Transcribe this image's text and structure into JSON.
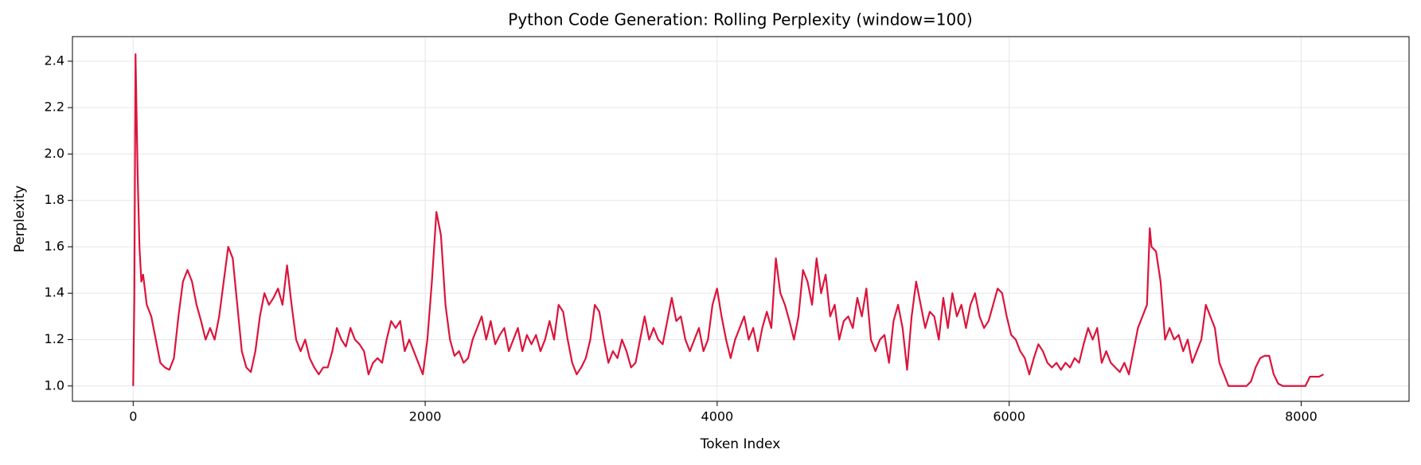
{
  "chart_data": {
    "type": "line",
    "title": "Python Code Generation: Rolling Perplexity (window=100)",
    "x_label": "Token Index",
    "y_label": "Perplexity",
    "color": "#dc143c",
    "grid": true,
    "xlim": [
      -416,
      8739
    ],
    "ylim": [
      0.934,
      2.506
    ],
    "xticks": [
      0,
      2000,
      4000,
      6000,
      8000
    ],
    "yticks": [
      {
        "value": 1,
        "label": "1.0"
      },
      1.2,
      1.4,
      1.6,
      1.8,
      {
        "value": 2,
        "label": "2.0"
      },
      2.2,
      2.4
    ],
    "x": [
      0,
      8,
      16,
      31,
      43,
      56,
      68,
      93,
      124,
      155,
      186,
      217,
      248,
      279,
      310,
      341,
      372,
      403,
      434,
      465,
      496,
      527,
      558,
      589,
      620,
      651,
      682,
      713,
      744,
      775,
      806,
      837,
      868,
      899,
      930,
      961,
      992,
      1023,
      1054,
      1085,
      1116,
      1147,
      1178,
      1209,
      1240,
      1271,
      1302,
      1333,
      1364,
      1395,
      1426,
      1457,
      1488,
      1519,
      1550,
      1581,
      1612,
      1643,
      1674,
      1705,
      1736,
      1767,
      1798,
      1829,
      1860,
      1891,
      1922,
      1953,
      1984,
      2015,
      2046,
      2077,
      2108,
      2139,
      2170,
      2201,
      2232,
      2263,
      2294,
      2325,
      2356,
      2387,
      2418,
      2449,
      2480,
      2511,
      2542,
      2573,
      2604,
      2635,
      2666,
      2697,
      2728,
      2759,
      2790,
      2821,
      2852,
      2883,
      2914,
      2945,
      2976,
      3007,
      3038,
      3069,
      3100,
      3131,
      3162,
      3193,
      3224,
      3255,
      3286,
      3317,
      3348,
      3379,
      3410,
      3441,
      3472,
      3503,
      3534,
      3565,
      3596,
      3627,
      3658,
      3689,
      3720,
      3751,
      3782,
      3813,
      3844,
      3875,
      3906,
      3937,
      3968,
      3999,
      4030,
      4061,
      4092,
      4123,
      4154,
      4185,
      4216,
      4247,
      4278,
      4309,
      4340,
      4371,
      4402,
      4433,
      4464,
      4495,
      4526,
      4557,
      4588,
      4619,
      4650,
      4681,
      4712,
      4743,
      4774,
      4805,
      4836,
      4867,
      4898,
      4929,
      4960,
      4991,
      5022,
      5053,
      5084,
      5115,
      5146,
      5177,
      5208,
      5239,
      5270,
      5301,
      5332,
      5363,
      5394,
      5425,
      5456,
      5487,
      5518,
      5549,
      5580,
      5611,
      5642,
      5673,
      5704,
      5735,
      5766,
      5797,
      5828,
      5859,
      5890,
      5921,
      5952,
      5983,
      6014,
      6045,
      6076,
      6107,
      6138,
      6169,
      6200,
      6231,
      6262,
      6293,
      6324,
      6355,
      6386,
      6417,
      6448,
      6479,
      6510,
      6541,
      6572,
      6603,
      6634,
      6665,
      6696,
      6727,
      6758,
      6789,
      6820,
      6851,
      6882,
      6913,
      6944,
      6963,
      6975,
      7006,
      7037,
      7068,
      7099,
      7130,
      7161,
      7192,
      7223,
      7254,
      7285,
      7316,
      7347,
      7378,
      7409,
      7440,
      7471,
      7502,
      7533,
      7564,
      7595,
      7626,
      7657,
      7688,
      7719,
      7750,
      7781,
      7812,
      7843,
      7874,
      7905,
      7936,
      7967,
      7998,
      8029,
      8060,
      8091,
      8122,
      8153
    ],
    "values": [
      1.0,
      1.38,
      2.43,
      1.9,
      1.6,
      1.45,
      1.48,
      1.35,
      1.3,
      1.2,
      1.1,
      1.08,
      1.07,
      1.12,
      1.3,
      1.45,
      1.5,
      1.45,
      1.35,
      1.28,
      1.2,
      1.25,
      1.2,
      1.3,
      1.45,
      1.6,
      1.55,
      1.35,
      1.15,
      1.08,
      1.06,
      1.15,
      1.3,
      1.4,
      1.35,
      1.38,
      1.42,
      1.35,
      1.52,
      1.35,
      1.2,
      1.15,
      1.2,
      1.12,
      1.08,
      1.05,
      1.08,
      1.08,
      1.15,
      1.25,
      1.2,
      1.17,
      1.25,
      1.2,
      1.18,
      1.15,
      1.05,
      1.1,
      1.12,
      1.1,
      1.2,
      1.28,
      1.25,
      1.28,
      1.15,
      1.2,
      1.15,
      1.1,
      1.05,
      1.2,
      1.45,
      1.75,
      1.65,
      1.35,
      1.2,
      1.13,
      1.15,
      1.1,
      1.12,
      1.2,
      1.25,
      1.3,
      1.2,
      1.28,
      1.18,
      1.22,
      1.25,
      1.15,
      1.2,
      1.25,
      1.15,
      1.22,
      1.18,
      1.22,
      1.15,
      1.2,
      1.28,
      1.2,
      1.35,
      1.32,
      1.2,
      1.1,
      1.05,
      1.08,
      1.12,
      1.2,
      1.35,
      1.32,
      1.2,
      1.1,
      1.15,
      1.12,
      1.2,
      1.15,
      1.08,
      1.1,
      1.2,
      1.3,
      1.2,
      1.25,
      1.2,
      1.18,
      1.28,
      1.38,
      1.28,
      1.3,
      1.2,
      1.15,
      1.2,
      1.25,
      1.15,
      1.2,
      1.35,
      1.42,
      1.3,
      1.2,
      1.12,
      1.2,
      1.25,
      1.3,
      1.2,
      1.25,
      1.15,
      1.25,
      1.32,
      1.25,
      1.55,
      1.4,
      1.35,
      1.28,
      1.2,
      1.3,
      1.5,
      1.45,
      1.35,
      1.55,
      1.4,
      1.48,
      1.3,
      1.35,
      1.2,
      1.28,
      1.3,
      1.25,
      1.38,
      1.3,
      1.42,
      1.2,
      1.15,
      1.2,
      1.22,
      1.1,
      1.28,
      1.35,
      1.25,
      1.07,
      1.3,
      1.45,
      1.35,
      1.25,
      1.32,
      1.3,
      1.2,
      1.38,
      1.25,
      1.4,
      1.3,
      1.35,
      1.25,
      1.35,
      1.4,
      1.3,
      1.25,
      1.28,
      1.35,
      1.42,
      1.4,
      1.3,
      1.22,
      1.2,
      1.15,
      1.12,
      1.05,
      1.12,
      1.18,
      1.15,
      1.1,
      1.08,
      1.1,
      1.07,
      1.1,
      1.08,
      1.12,
      1.1,
      1.18,
      1.25,
      1.2,
      1.25,
      1.1,
      1.15,
      1.1,
      1.08,
      1.06,
      1.1,
      1.05,
      1.15,
      1.25,
      1.3,
      1.35,
      1.68,
      1.6,
      1.58,
      1.45,
      1.2,
      1.25,
      1.2,
      1.22,
      1.15,
      1.2,
      1.1,
      1.15,
      1.2,
      1.35,
      1.3,
      1.25,
      1.1,
      1.05,
      1.0,
      1.0,
      1.0,
      1.0,
      1.0,
      1.02,
      1.08,
      1.12,
      1.13,
      1.13,
      1.05,
      1.01,
      1.0,
      1.0,
      1.0,
      1.0,
      1.0,
      1.0,
      1.04,
      1.04,
      1.04,
      1.05
    ]
  }
}
